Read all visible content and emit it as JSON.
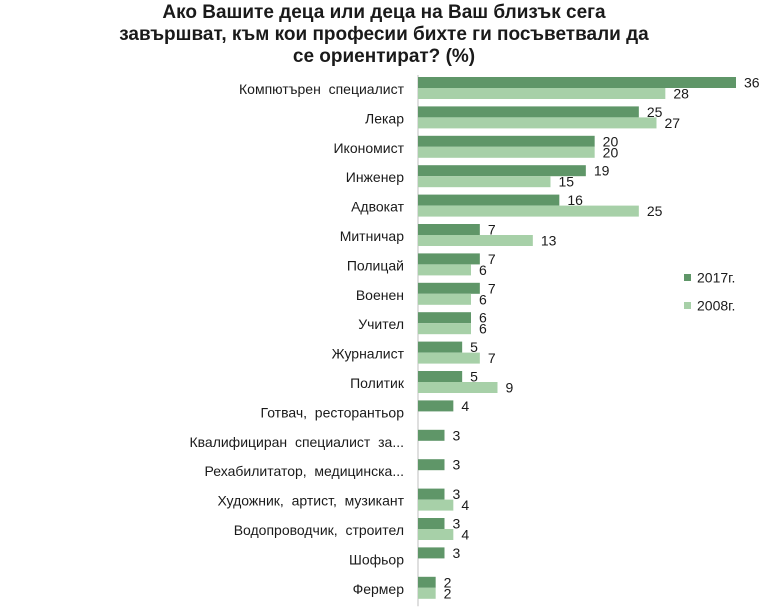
{
  "title": {
    "line1": "Ако Вашите деца или деца на Ваш близък сега",
    "line2": "завършват, към кои професии бихте ги посъветвали да",
    "line3": "се ориентират? (%)"
  },
  "colors": {
    "series_2017": "#5f9668",
    "series_2008": "#a7d0a8",
    "axis": "#bfbfbf"
  },
  "legend": [
    {
      "label": "2017г.",
      "color": "#5f9668"
    },
    {
      "label": "2008г.",
      "color": "#a7d0a8"
    }
  ],
  "chart_data": {
    "type": "bar",
    "orientation": "horizontal",
    "title": "Ако Вашите деца или деца на Ваш близък сега завършват, към кои професии бихте ги посъветвали да се ориентират? (%)",
    "legend_position": "right",
    "xlim": [
      0,
      36
    ],
    "categories": [
      "Компютърен  специалист",
      "Лекар",
      "Икономист",
      "Инженер",
      "Адвокат",
      "Митничар",
      "Полицай",
      "Военен",
      "Учител",
      "Журналист",
      "Политик",
      "Готвач,  ресторантьор",
      "Квалифициран  специалист  за...",
      "Рехабилитатор,  медицинска...",
      "Художник,  артист,  музикант",
      "Водопроводчик,  строител",
      "Шофьор",
      "Фермер"
    ],
    "series": [
      {
        "name": "2017г.",
        "values": [
          36,
          25,
          20,
          19,
          16,
          7,
          7,
          7,
          6,
          5,
          5,
          4,
          3,
          3,
          3,
          3,
          3,
          2
        ]
      },
      {
        "name": "2008г.",
        "values": [
          28,
          27,
          20,
          15,
          25,
          13,
          6,
          6,
          6,
          7,
          9,
          null,
          null,
          null,
          4,
          4,
          null,
          2
        ]
      }
    ]
  }
}
